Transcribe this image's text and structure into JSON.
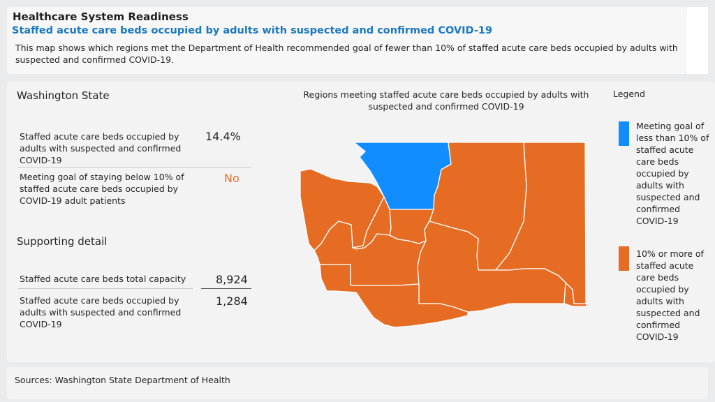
{
  "header": {
    "title": "Healthcare System Readiness",
    "subtitle": "Staffed acute care beds occupied by adults with suspected and confirmed COVID-19",
    "description": "This map shows which regions met the Department of Health recommended goal of fewer than 10% of staffed acute care beds occupied by adults with suspected and confirmed COVID-19."
  },
  "state_panel": {
    "title": "Washington State",
    "metric1_label": "Staffed acute care beds occupied by adults with suspected and confirmed COVID-19",
    "metric1_value": "14.4%",
    "metric2_label": "Meeting goal of staying below 10% of staffed acute care beds occupied by COVID-19 adult patients",
    "metric2_value": "No"
  },
  "supporting": {
    "title": "Supporting detail",
    "capacity_label": "Staffed acute care beds total capacity",
    "capacity_value": "8,924",
    "occupied_label": "Staffed acute care beds occupied by adults with suspected and confirmed COVID-19",
    "occupied_value": "1,284"
  },
  "map": {
    "title": "Regions meeting staffed acute care beds occupied by adults with suspected and confirmed COVID-19",
    "regions": [
      {
        "id": "northwest",
        "status": "meeting"
      },
      {
        "id": "north-central",
        "status": "not-meeting"
      },
      {
        "id": "spokane-area",
        "status": "not-meeting"
      },
      {
        "id": "olympic",
        "status": "not-meeting"
      },
      {
        "id": "west-central",
        "status": "not-meeting"
      },
      {
        "id": "south-sound",
        "status": "not-meeting"
      },
      {
        "id": "central",
        "status": "not-meeting"
      },
      {
        "id": "southwest",
        "status": "not-meeting"
      },
      {
        "id": "south-central",
        "status": "not-meeting"
      },
      {
        "id": "southeast",
        "status": "not-meeting"
      }
    ]
  },
  "legend": {
    "title": "Legend",
    "meeting_label": "Meeting goal of less than 10% of staffed acute care beds occupied by adults with suspected and confirmed COVID-19",
    "meeting_color": "#118dff",
    "not_meeting_label": "10% or more of staffed acute care beds occupied by adults with suspected and confirmed COVID-19",
    "not_meeting_color": "#e66c24",
    "no_color": "#e66c24"
  },
  "footer": {
    "sources": "Sources: Washington State Department of Health"
  }
}
